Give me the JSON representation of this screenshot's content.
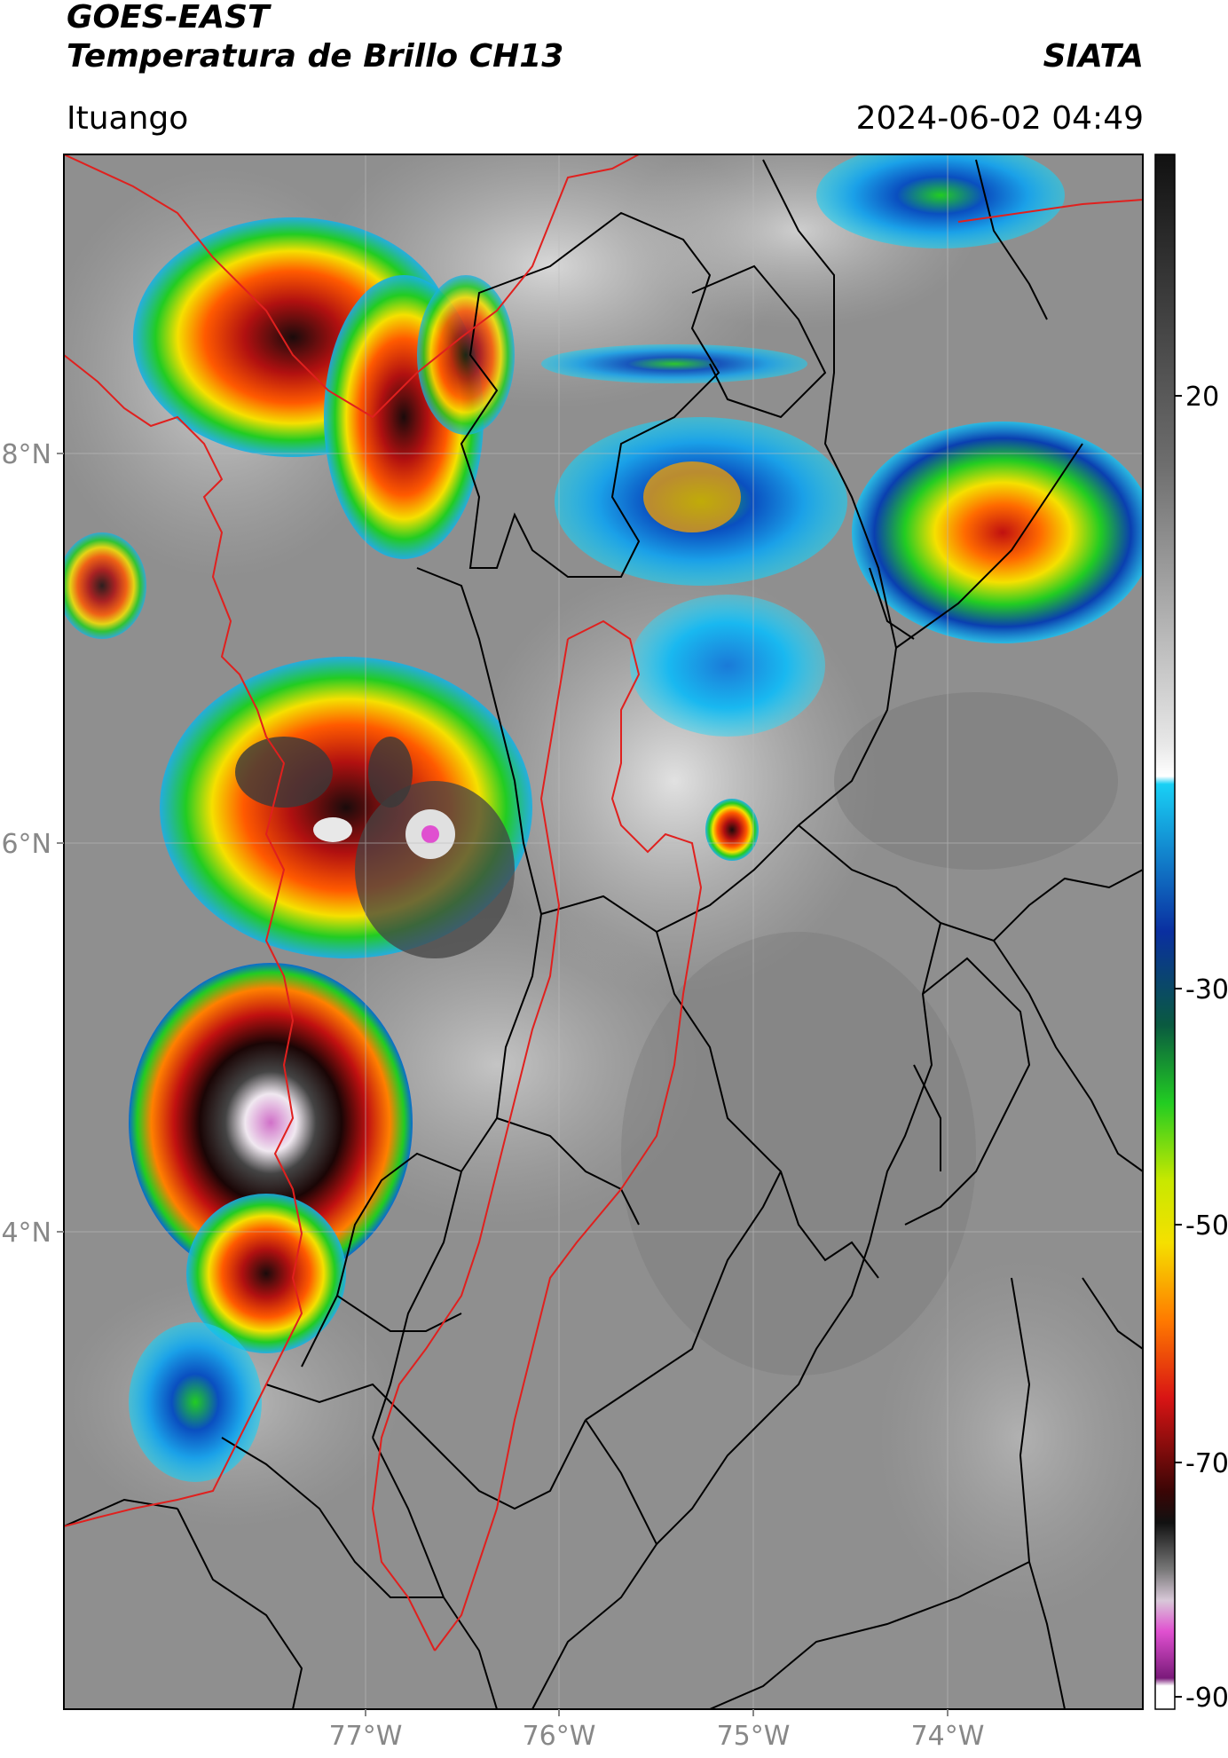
{
  "header": {
    "satellite": "GOES-EAST",
    "product": "Temperatura de Brillo CH13",
    "brand": "SIATA",
    "location": "Ituango",
    "datetime": "2024-06-02 04:49"
  },
  "map": {
    "lat_labels": [
      "8°N",
      "6°N",
      "4°N"
    ],
    "lon_labels": [
      "77°W",
      "76°W",
      "75°W",
      "74°W"
    ],
    "colors": {
      "gray_background": "#8c8c8c",
      "country_border": "#e0201e",
      "admin_border": "#000000"
    }
  },
  "colorbar": {
    "tick_labels": [
      "20",
      "-30",
      "-50",
      "-70",
      "-90"
    ],
    "colors": {
      "top": "#1a1a1a",
      "gray": "#8a8a8a",
      "white": "#f5f5f5",
      "cyan": "#19d0f5",
      "blue": "#0a2fa0",
      "green": "#22cc22",
      "yellow": "#f5e000",
      "orange": "#ff7a00",
      "red": "#d81414",
      "darkred": "#3a0505",
      "magenta": "#e050d0",
      "purple": "#7a1a7a"
    }
  }
}
